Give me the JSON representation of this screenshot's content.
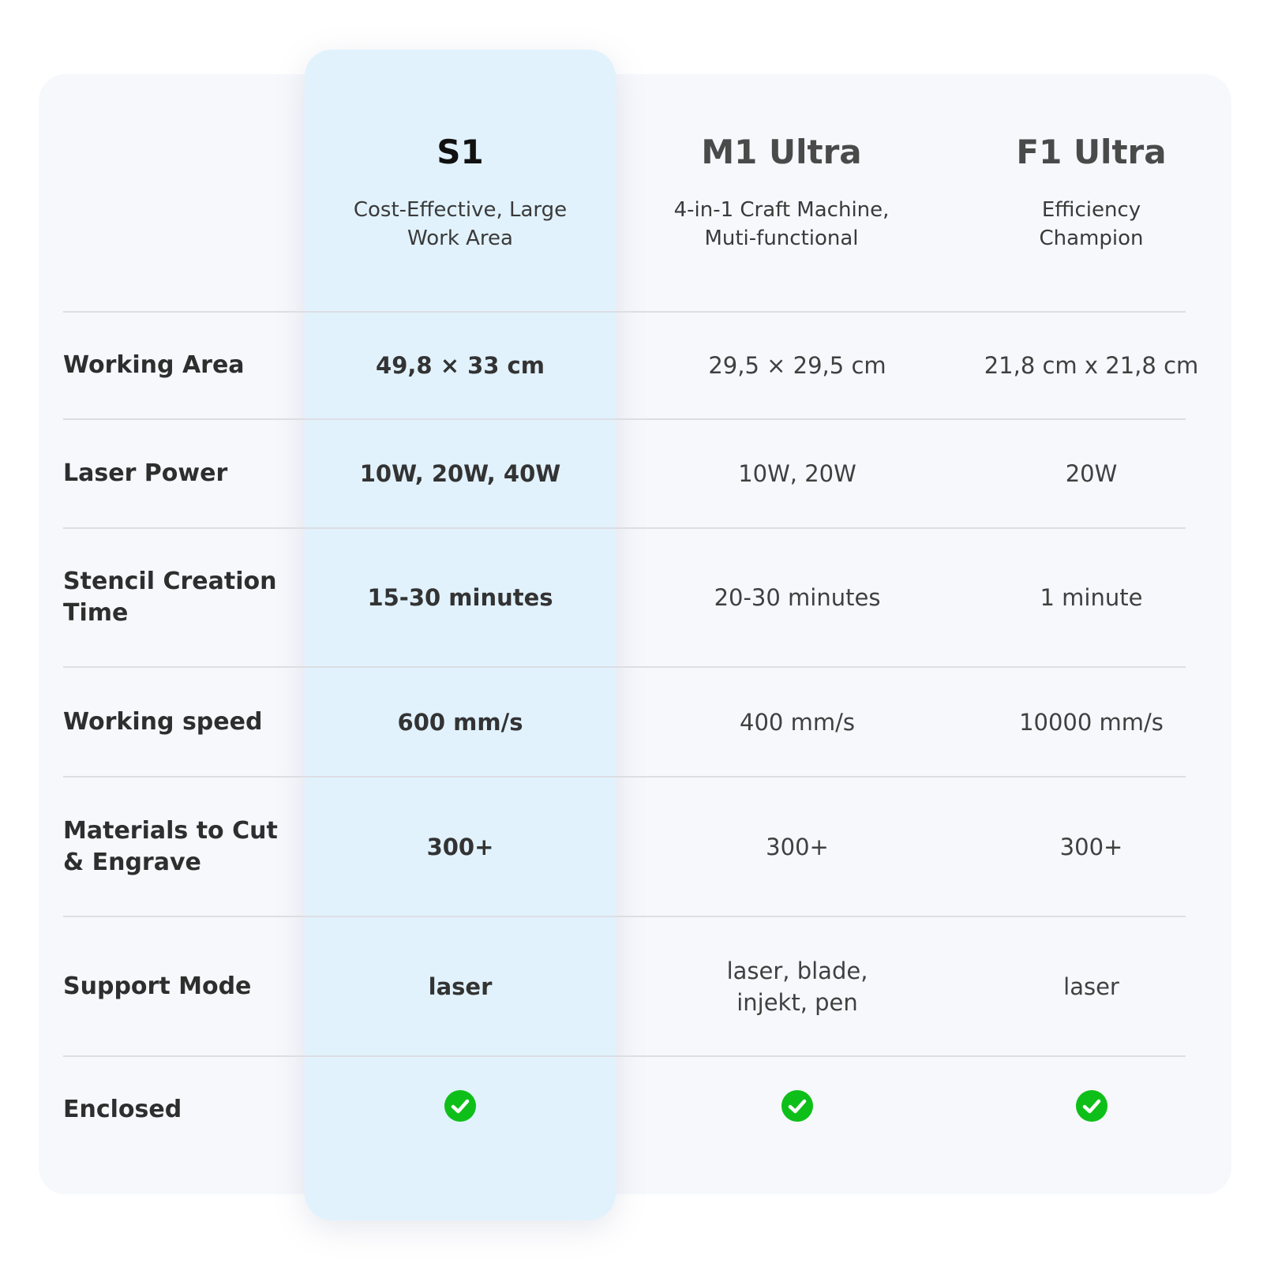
{
  "colors": {
    "highlight": "#e1f2fd",
    "check": "#0fbf19",
    "card": "#f6f8fc"
  },
  "products": [
    {
      "name": "S1",
      "subtitle_line1": "Cost-Effective, Large",
      "subtitle_line2": "Work Area"
    },
    {
      "name": "M1 Ultra",
      "subtitle_line1": "4-in-1 Craft Machine,",
      "subtitle_line2": "Muti-functional"
    },
    {
      "name": "F1 Ultra",
      "subtitle_line1": "Efficiency",
      "subtitle_line2": "Champion"
    }
  ],
  "rows": [
    {
      "label": "Working Area",
      "values": [
        "49,8 × 33 cm",
        "29,5 × 29,5 cm",
        "21,8 cm x 21,8 cm"
      ]
    },
    {
      "label": "Laser Power",
      "values": [
        "10W, 20W, 40W",
        "10W, 20W",
        "20W"
      ]
    },
    {
      "label_line1": "Stencil Creation",
      "label_line2": "Time",
      "values": [
        "15-30 minutes",
        "20-30 minutes",
        "1 minute"
      ]
    },
    {
      "label": "Working speed",
      "values": [
        "600 mm/s",
        "400 mm/s",
        "10000 mm/s"
      ]
    },
    {
      "label_line1": "Materials to Cut",
      "label_line2": "& Engrave",
      "values": [
        "300+",
        "300+",
        "300+"
      ]
    },
    {
      "label": "Support Mode",
      "values": [
        "laser"
      ],
      "value_m1_line1": "laser, blade,",
      "value_m1_line2": "injekt, pen",
      "value_f1": "laser"
    },
    {
      "label": "Enclosed",
      "values": [
        true,
        true,
        true
      ],
      "icon": "check-circle-icon"
    }
  ]
}
